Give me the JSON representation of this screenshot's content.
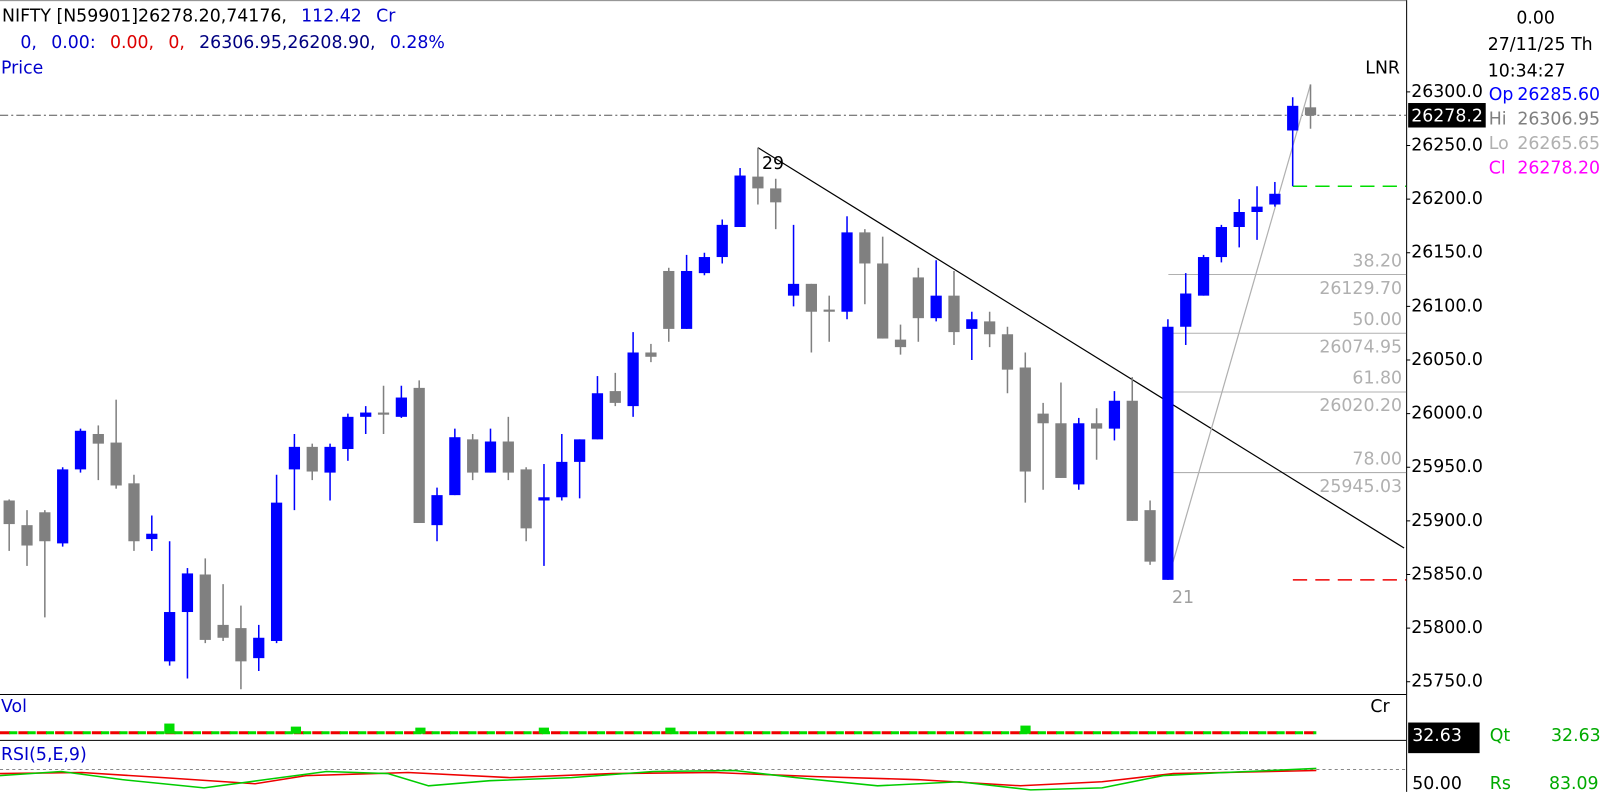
{
  "header": {
    "line1": [
      {
        "text": "NIFTY [N59901]26278.20,74176,",
        "color": "#000000"
      },
      {
        "text": "112.42",
        "color": "#0000cc"
      },
      {
        "text": "Cr",
        "color": "#0000cc"
      }
    ],
    "line2": [
      {
        "text": "0,",
        "color": "#0000cc"
      },
      {
        "text": "0.00:",
        "color": "#0000cc"
      },
      {
        "text": "0.00,",
        "color": "#dd0000"
      },
      {
        "text": "0,",
        "color": "#dd0000"
      },
      {
        "text": "26306.95,26208.90,",
        "color": "#000080"
      },
      {
        "text": "0.28%",
        "color": "#0000cc"
      }
    ]
  },
  "info_panel": {
    "change": "0.00",
    "date": "27/11/25 Th",
    "time": "10:34:27",
    "ohlc": [
      {
        "key": "Op",
        "value": "26285.60",
        "color": "#0000ff"
      },
      {
        "key": "Hi",
        "value": "26306.95",
        "color": "#808080"
      },
      {
        "key": "Lo",
        "value": "26265.65",
        "color": "#b0b0b0"
      },
      {
        "key": "Cl",
        "value": "26278.20",
        "color": "#ff00ff"
      }
    ]
  },
  "chart_data": {
    "type": "candlestick",
    "y_label": "Price",
    "scale_label": "LNR",
    "up_color": "#0000ff",
    "down_color": "#808080",
    "open": [
      25919,
      25896,
      25908,
      25879,
      25948,
      25981,
      25973,
      25935,
      25883,
      25769,
      25815,
      25850,
      25803,
      25800,
      25772,
      25788,
      25948,
      25969,
      25945,
      25967,
      25997,
      26001,
      25997,
      26024,
      25896,
      25924,
      25976,
      25945,
      25974,
      25948,
      25919,
      25922,
      25955,
      25976,
      26021,
      26007,
      26057,
      26133,
      26079,
      26131,
      26146,
      26174,
      26221,
      26210,
      26110,
      26121,
      26097,
      26095,
      26169,
      26140,
      26069,
      26127,
      26089,
      26110,
      26079,
      26086,
      26074,
      26043,
      26000,
      25991,
      25934,
      25991,
      25986,
      26012,
      25910,
      25845,
      26081,
      26110,
      26146,
      26174,
      26188,
      26195,
      26264,
      26285.6
    ],
    "high": [
      25920,
      25910,
      25910,
      25950,
      25986,
      25989,
      26013,
      25943,
      25905,
      25881,
      25856,
      25865,
      25841,
      25821,
      25803,
      25943,
      25981,
      25972,
      25972,
      26000,
      26007,
      26026,
      26026,
      26031,
      25931,
      25986,
      25981,
      25986,
      25997,
      25950,
      25953,
      25981,
      25976,
      26035,
      26038,
      26076,
      26065,
      26136,
      26148,
      26150,
      26181,
      26229,
      26248,
      26219,
      26176,
      26121,
      26110,
      26184,
      26172,
      26165,
      26083,
      26136,
      26143,
      26133,
      26095,
      26095,
      26081,
      26057,
      26010,
      26029,
      25996,
      26005,
      26021,
      26034,
      25919,
      26088,
      26131,
      26148,
      26176,
      26200,
      26212,
      26216,
      26295,
      26306.95
    ],
    "low": [
      25872,
      25858,
      25810,
      25876,
      25945,
      25938,
      25930,
      25872,
      25872,
      25765,
      25753,
      25786,
      25788,
      25743,
      25760,
      25786,
      25910,
      25938,
      25919,
      25956,
      25981,
      25981,
      25996,
      25898,
      25881,
      25924,
      25938,
      25945,
      25938,
      25881,
      25858,
      25919,
      25921,
      25976,
      26007,
      25997,
      26048,
      26067,
      26079,
      26129,
      26140,
      26174,
      26195,
      26172,
      26100,
      26057,
      26067,
      26088,
      26102,
      26070,
      26055,
      26067,
      26086,
      26064,
      26050,
      26062,
      26019,
      25917,
      25929,
      25940,
      25929,
      25957,
      25975,
      25900,
      25859,
      25845,
      26064,
      26110,
      26141,
      26155,
      26162,
      26193,
      26212,
      26265.65
    ],
    "close": [
      25897,
      25877,
      25881,
      25948,
      25984,
      25972,
      25933,
      25881,
      25888,
      25815,
      25851,
      25789,
      25791,
      25769,
      25791,
      25917,
      25969,
      25946,
      25969,
      25997,
      26001,
      25999,
      26015,
      25898,
      25924,
      25978,
      25945,
      25974,
      25945,
      25893,
      25922,
      25955,
      25976,
      26019,
      26010,
      26057,
      26053,
      26079,
      26133,
      26146,
      26176,
      26222,
      26210,
      26197,
      26121,
      26095,
      26095,
      26169,
      26140,
      26070,
      26062,
      26089,
      26110,
      26076,
      26088,
      26074,
      26041,
      25946,
      25991,
      25940,
      25991,
      25986,
      26012,
      25900,
      25862,
      26081,
      26112,
      26146,
      26174,
      26188,
      26193,
      26205,
      26287,
      26278.2
    ],
    "ylim": [
      25738.6,
      26385.6
    ],
    "yticks": [
      {
        "value": 25750,
        "label": "25750.0"
      },
      {
        "value": 25800,
        "label": "25800.0"
      },
      {
        "value": 25850,
        "label": "25850.0"
      },
      {
        "value": 25900,
        "label": "25900.0"
      },
      {
        "value": 25950,
        "label": "25950.0"
      },
      {
        "value": 26000,
        "label": "26000.0"
      },
      {
        "value": 26050,
        "label": "26050.0"
      },
      {
        "value": 26100,
        "label": "26100.0"
      },
      {
        "value": 26150,
        "label": "26150.0"
      },
      {
        "value": 26200,
        "label": "26200.0"
      },
      {
        "value": 26250,
        "label": "26250.0"
      },
      {
        "value": 26300,
        "label": "26300.0"
      }
    ],
    "last_price_label": "26278.2",
    "fib_levels": [
      {
        "percent": "38.20",
        "price": {
          "value": 26129.7,
          "label": "26129.70"
        }
      },
      {
        "percent": "50.00",
        "price": {
          "value": 26074.95,
          "label": "26074.95"
        }
      },
      {
        "percent": "61.80",
        "price": {
          "value": 26020.2,
          "label": "26020.20"
        }
      },
      {
        "percent": "78.00",
        "price": {
          "value": 25945.03,
          "label": "25945.03"
        }
      }
    ],
    "levels": [
      {
        "value": 26212,
        "color": "#00dd00"
      },
      {
        "value": 25845,
        "color": "#ee0000"
      }
    ],
    "swing_labels": [
      {
        "text": "29",
        "index": 42
      },
      {
        "text": "21",
        "index": 65
      }
    ]
  },
  "volume_panel": {
    "label": "Vol",
    "unit": "Cr",
    "value_box": "32.63",
    "qt_key": "Qt",
    "qt_value": "32.63"
  },
  "rsi_panel": {
    "label": "RSI(5,E,9)",
    "rs_key": "Rs",
    "rs_value": "83.09",
    "level": "50.00"
  }
}
